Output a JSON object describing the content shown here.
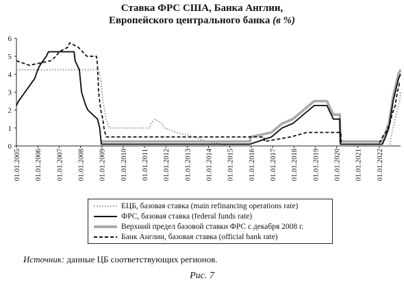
{
  "title": {
    "line1": "Ставка ФРС США, Банка Англии,",
    "line2": "Европейского центрального банка",
    "unit": "(в %)"
  },
  "source": {
    "label": "Источник:",
    "text": "данные ЦБ соответствующих регионов."
  },
  "caption": "Рис. 7",
  "chart_data": {
    "type": "line",
    "xlim": [
      2005.0,
      2023.0
    ],
    "ylim": [
      0,
      6
    ],
    "yticks": [
      "0",
      "1",
      "2",
      "3",
      "4",
      "5",
      "6"
    ],
    "xticks": [
      {
        "x": 2005,
        "label": "01.01.2005"
      },
      {
        "x": 2006,
        "label": "01.01.2006"
      },
      {
        "x": 2007,
        "label": "01.01.2007"
      },
      {
        "x": 2008,
        "label": "01.01.2008"
      },
      {
        "x": 2009,
        "label": "01.01.2009"
      },
      {
        "x": 2010,
        "label": "01.01.2010"
      },
      {
        "x": 2011,
        "label": "01.01.2011"
      },
      {
        "x": 2012,
        "label": "01.01.2012"
      },
      {
        "x": 2013,
        "label": "01.01.2013"
      },
      {
        "x": 2014,
        "label": "01.01.2014"
      },
      {
        "x": 2015,
        "label": "01.01.2015"
      },
      {
        "x": 2016,
        "label": "01.01.2016"
      },
      {
        "x": 2017,
        "label": "01.01.2017"
      },
      {
        "x": 2018,
        "label": "01.01.2018"
      },
      {
        "x": 2019,
        "label": "01.01.2019"
      },
      {
        "x": 2020,
        "label": "01.01.2020"
      },
      {
        "x": 2021,
        "label": "01.01.2021"
      },
      {
        "x": 2022,
        "label": "01.01.2022"
      }
    ],
    "legend_position": "bottom",
    "series": [
      {
        "name": "ЕЦБ, базовая ставка (main refinancing operations rate)",
        "style": "dotted",
        "color": "#9a9a9a",
        "points": [
          [
            2005.0,
            4.25
          ],
          [
            2008.85,
            4.25
          ],
          [
            2008.95,
            3.75
          ],
          [
            2009.05,
            2.5
          ],
          [
            2009.2,
            1.5
          ],
          [
            2009.35,
            1.0
          ],
          [
            2011.25,
            1.0
          ],
          [
            2011.3,
            1.25
          ],
          [
            2011.5,
            1.5
          ],
          [
            2011.8,
            1.25
          ],
          [
            2011.95,
            1.0
          ],
          [
            2012.5,
            0.75
          ],
          [
            2013.35,
            0.5
          ],
          [
            2013.85,
            0.25
          ],
          [
            2014.45,
            0.15
          ],
          [
            2014.7,
            0.05
          ],
          [
            2016.2,
            0.0
          ],
          [
            2022.5,
            0.0
          ],
          [
            2022.55,
            0.5
          ],
          [
            2022.7,
            1.25
          ],
          [
            2022.85,
            2.0
          ],
          [
            2022.95,
            2.5
          ],
          [
            2023.0,
            3.0
          ]
        ]
      },
      {
        "name": "ФРС, базовая ставка (federal funds rate)",
        "style": "solid",
        "color": "#111111",
        "points": [
          [
            2005.0,
            2.25
          ],
          [
            2005.1,
            2.5
          ],
          [
            2005.25,
            2.75
          ],
          [
            2005.4,
            3.0
          ],
          [
            2005.55,
            3.25
          ],
          [
            2005.7,
            3.5
          ],
          [
            2005.85,
            3.75
          ],
          [
            2006.0,
            4.25
          ],
          [
            2006.1,
            4.5
          ],
          [
            2006.25,
            4.75
          ],
          [
            2006.4,
            5.0
          ],
          [
            2006.5,
            5.25
          ],
          [
            2007.7,
            5.25
          ],
          [
            2007.75,
            4.75
          ],
          [
            2007.85,
            4.5
          ],
          [
            2007.95,
            4.25
          ],
          [
            2008.05,
            3.0
          ],
          [
            2008.25,
            2.25
          ],
          [
            2008.35,
            2.0
          ],
          [
            2008.8,
            1.5
          ],
          [
            2008.9,
            1.0
          ],
          [
            2008.98,
            0.1
          ],
          [
            2015.95,
            0.1
          ],
          [
            2016.95,
            0.5
          ],
          [
            2017.2,
            0.75
          ],
          [
            2017.45,
            1.0
          ],
          [
            2017.95,
            1.25
          ],
          [
            2018.2,
            1.5
          ],
          [
            2018.45,
            1.75
          ],
          [
            2018.7,
            2.0
          ],
          [
            2018.95,
            2.25
          ],
          [
            2019.55,
            2.25
          ],
          [
            2019.65,
            2.0
          ],
          [
            2019.75,
            1.75
          ],
          [
            2019.85,
            1.5
          ],
          [
            2020.15,
            1.5
          ],
          [
            2020.18,
            0.1
          ],
          [
            2022.15,
            0.1
          ],
          [
            2022.3,
            0.5
          ],
          [
            2022.45,
            1.0
          ],
          [
            2022.55,
            1.75
          ],
          [
            2022.65,
            2.5
          ],
          [
            2022.8,
            3.25
          ],
          [
            2022.9,
            3.75
          ],
          [
            2023.0,
            4.0
          ]
        ]
      },
      {
        "name": "Верхний предел базовой ставки ФРС с декабря 2008 г.",
        "style": "solid",
        "color": "#aaaaaa",
        "points": [
          [
            2008.98,
            0.25
          ],
          [
            2015.95,
            0.25
          ],
          [
            2015.97,
            0.5
          ],
          [
            2016.95,
            0.75
          ],
          [
            2017.2,
            1.0
          ],
          [
            2017.45,
            1.25
          ],
          [
            2017.95,
            1.5
          ],
          [
            2018.2,
            1.75
          ],
          [
            2018.45,
            2.0
          ],
          [
            2018.7,
            2.25
          ],
          [
            2018.95,
            2.5
          ],
          [
            2019.55,
            2.5
          ],
          [
            2019.65,
            2.25
          ],
          [
            2019.75,
            2.0
          ],
          [
            2019.85,
            1.75
          ],
          [
            2020.15,
            1.75
          ],
          [
            2020.18,
            0.25
          ],
          [
            2022.15,
            0.25
          ],
          [
            2022.3,
            0.75
          ],
          [
            2022.45,
            1.25
          ],
          [
            2022.55,
            2.0
          ],
          [
            2022.65,
            2.75
          ],
          [
            2022.8,
            3.5
          ],
          [
            2022.9,
            4.0
          ],
          [
            2023.0,
            4.25
          ]
        ]
      },
      {
        "name": "Банк Англии, базовая ставка (official bank rate)",
        "style": "dashed",
        "color": "#111111",
        "points": [
          [
            2005.0,
            4.75
          ],
          [
            2005.6,
            4.5
          ],
          [
            2006.6,
            4.75
          ],
          [
            2006.85,
            5.0
          ],
          [
            2007.0,
            5.25
          ],
          [
            2007.4,
            5.5
          ],
          [
            2007.5,
            5.75
          ],
          [
            2007.9,
            5.5
          ],
          [
            2008.1,
            5.25
          ],
          [
            2008.3,
            5.0
          ],
          [
            2008.75,
            5.0
          ],
          [
            2008.8,
            4.5
          ],
          [
            2008.85,
            3.0
          ],
          [
            2008.95,
            2.0
          ],
          [
            2009.05,
            1.5
          ],
          [
            2009.1,
            1.0
          ],
          [
            2009.2,
            0.5
          ],
          [
            2016.6,
            0.5
          ],
          [
            2016.62,
            0.25
          ],
          [
            2017.85,
            0.5
          ],
          [
            2018.6,
            0.75
          ],
          [
            2020.2,
            0.75
          ],
          [
            2020.22,
            0.1
          ],
          [
            2021.95,
            0.1
          ],
          [
            2022.05,
            0.25
          ],
          [
            2022.15,
            0.5
          ],
          [
            2022.3,
            0.75
          ],
          [
            2022.4,
            1.0
          ],
          [
            2022.5,
            1.25
          ],
          [
            2022.6,
            1.75
          ],
          [
            2022.75,
            2.25
          ],
          [
            2022.85,
            3.0
          ],
          [
            2022.95,
            3.5
          ],
          [
            2023.0,
            3.5
          ]
        ]
      }
    ]
  }
}
